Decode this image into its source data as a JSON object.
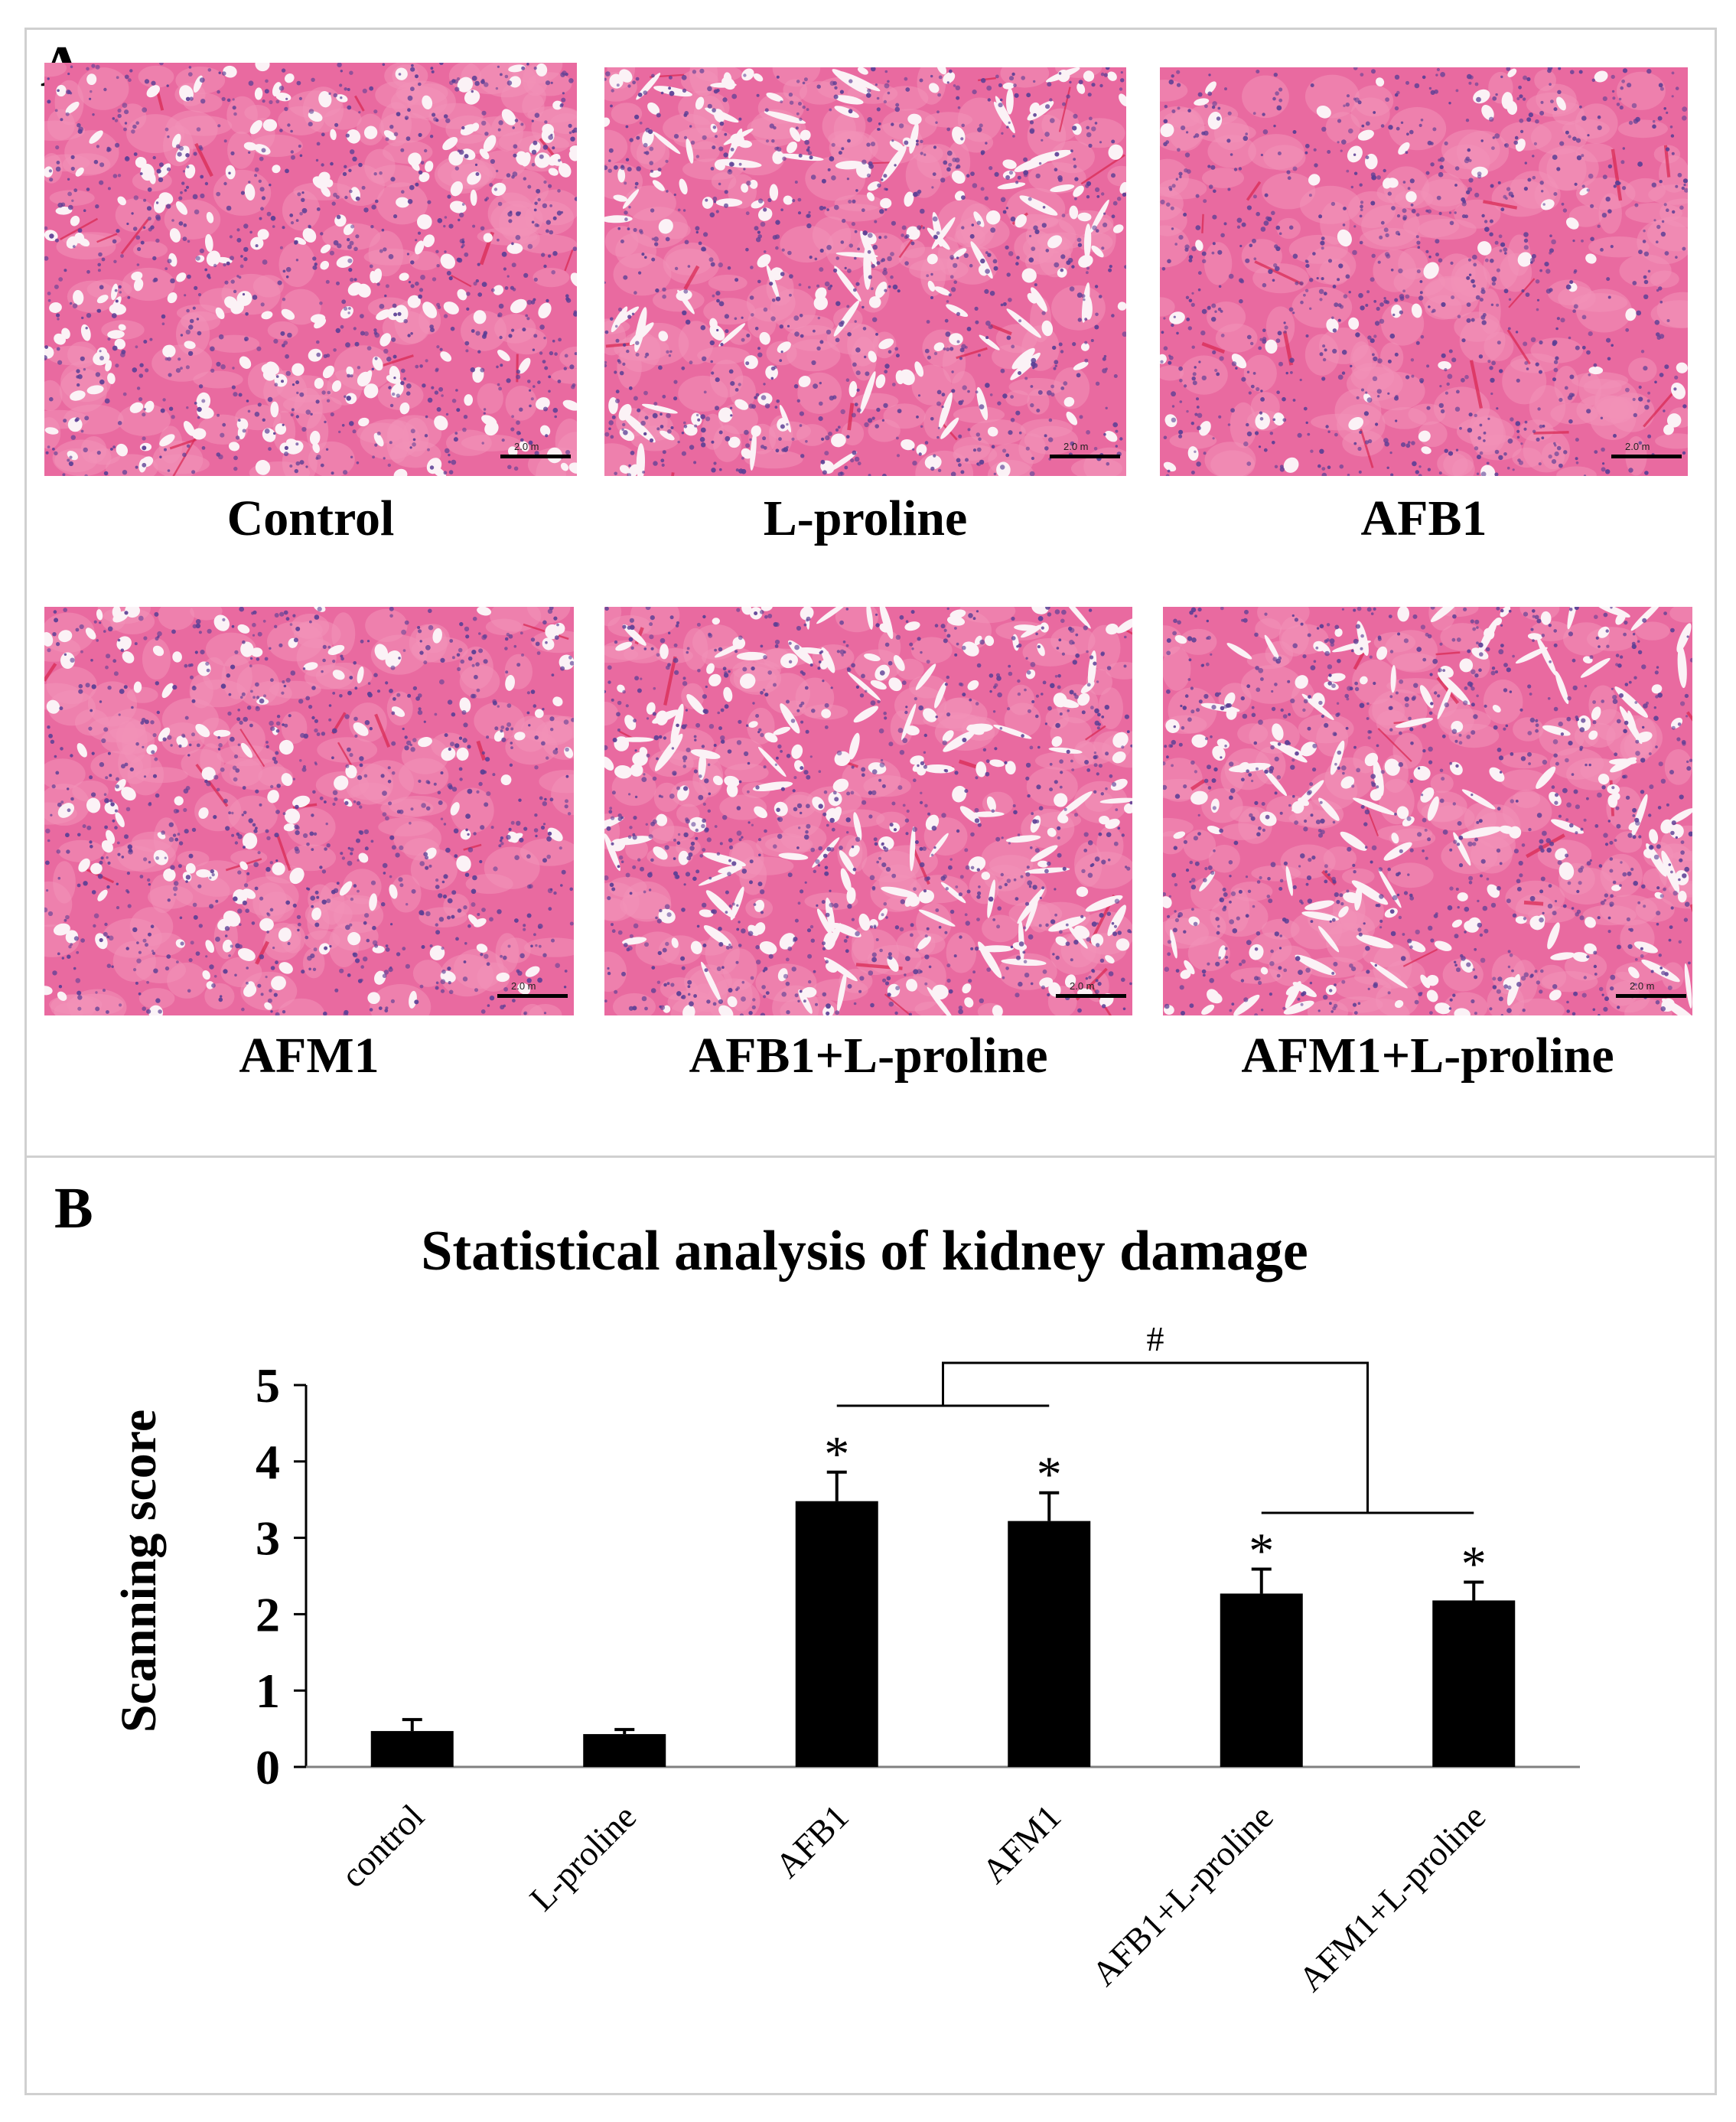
{
  "panel_a": {
    "label": "A",
    "tissue_colors": {
      "base": "#e96aa0",
      "light": "#f391b8",
      "lumen": "#fbf2f6",
      "nucleus": "#5b3f95",
      "vessel": "#d82650"
    },
    "scale_text": "2.0 m",
    "images": [
      {
        "caption": "Control"
      },
      {
        "caption": "L-proline"
      },
      {
        "caption": "AFB1"
      },
      {
        "caption": "AFM1"
      },
      {
        "caption": "AFB1+L-proline"
      },
      {
        "caption": "AFM1+L-proline"
      }
    ]
  },
  "panel_b": {
    "label": "B",
    "significance_star": "*",
    "bracket_marker": "#"
  },
  "chart_data": {
    "type": "bar",
    "title": "Statistical analysis of kidney damage",
    "ylabel": "Scanning score",
    "xlabel": "",
    "categories": [
      "control",
      "L-proline",
      "AFB1",
      "AFM1",
      "AFB1+L-proline",
      "AFM1+L-proline"
    ],
    "values": [
      0.47,
      0.43,
      3.48,
      3.22,
      2.27,
      2.18
    ],
    "errors": [
      0.15,
      0.06,
      0.38,
      0.37,
      0.32,
      0.24
    ],
    "significant": [
      false,
      false,
      true,
      true,
      true,
      true
    ],
    "ylim": [
      0,
      5
    ],
    "yticks": [
      0,
      1,
      2,
      3,
      4,
      5
    ],
    "bar_color": "#000000",
    "grid": false,
    "legend": "none"
  }
}
